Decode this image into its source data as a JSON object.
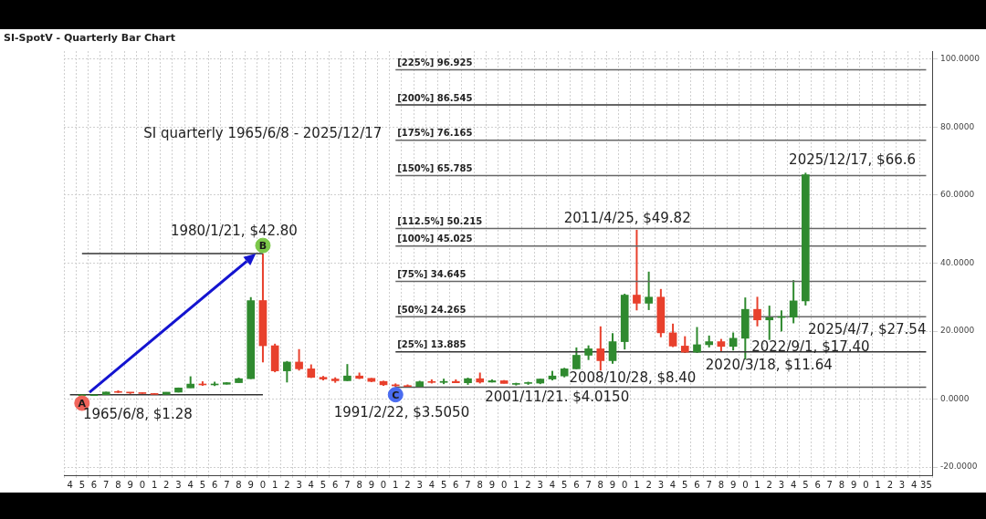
{
  "chart_data": {
    "type": "candlestick",
    "title": "SI-SpotV - Quarterly Bar Chart",
    "subtitle": "SI quarterly 1965/6/8 - 2025/12/17",
    "categories": [
      "4",
      "5",
      "6",
      "7",
      "8",
      "9",
      "0",
      "1",
      "2",
      "3",
      "4",
      "5",
      "6",
      "7",
      "8",
      "9",
      "0",
      "1",
      "2",
      "3",
      "4",
      "5",
      "6",
      "7",
      "8",
      "9",
      "0",
      "1",
      "2",
      "3",
      "4",
      "5",
      "6",
      "7",
      "8",
      "9",
      "0",
      "1",
      "2",
      "3",
      "4",
      "5",
      "6",
      "7",
      "8",
      "9",
      "0",
      "1",
      "2",
      "3",
      "4",
      "5",
      "6",
      "7",
      "8",
      "9",
      "0",
      "1",
      "2",
      "3",
      "4",
      "5",
      "6",
      "7",
      "8",
      "9",
      "0",
      "1",
      "2",
      "3",
      "4",
      "35"
    ],
    "ylim": [
      -22.4,
      102.4
    ],
    "yticks": [
      {
        "value": -20,
        "label": "-20.0000"
      },
      {
        "value": 0,
        "label": "0.0000"
      },
      {
        "value": 20,
        "label": "20.0000"
      },
      {
        "value": 40,
        "label": "40.0000"
      },
      {
        "value": 60,
        "label": "60.0000"
      },
      {
        "value": 80,
        "label": "80.0000"
      },
      {
        "value": 100,
        "label": "100.0000"
      }
    ],
    "grid": true,
    "series": [
      {
        "ohlc": [
          null,
          [
            1.29,
            1.29,
            1.28,
            1.29
          ],
          [
            1.29,
            1.29,
            1.29,
            1.29
          ],
          [
            1.29,
            2.17,
            1.29,
            2.08
          ],
          [
            2.08,
            2.56,
            1.81,
            1.97
          ],
          [
            1.97,
            2.02,
            1.54,
            1.8
          ],
          [
            1.8,
            1.94,
            1.57,
            1.64
          ],
          [
            1.64,
            1.75,
            1.31,
            1.37
          ],
          [
            1.37,
            2.05,
            1.36,
            2.04
          ],
          [
            2.04,
            3.4,
            1.96,
            3.28
          ],
          [
            3.28,
            6.7,
            3.27,
            4.42
          ],
          [
            4.42,
            5.23,
            3.91,
            4.18
          ],
          [
            4.18,
            5.11,
            3.84,
            4.37
          ],
          [
            4.37,
            4.97,
            4.3,
            4.83
          ],
          [
            4.83,
            6.3,
            4.8,
            6.0
          ],
          [
            6.0,
            30,
            5.9,
            29
          ],
          [
            29,
            42.8,
            10.8,
            15.7
          ],
          [
            15.7,
            16.3,
            7.9,
            8.3
          ],
          [
            8.3,
            11.2,
            4.9,
            10.9
          ],
          [
            10.9,
            14.7,
            8.4,
            8.9
          ],
          [
            8.9,
            10.2,
            6.2,
            6.4
          ],
          [
            6.4,
            6.8,
            5.5,
            5.9
          ],
          [
            5.9,
            6.4,
            4.8,
            5.4
          ],
          [
            5.4,
            10.3,
            5.3,
            6.8
          ],
          [
            6.8,
            7.8,
            5.9,
            6.1
          ],
          [
            6.1,
            6.2,
            5.0,
            5.2
          ],
          [
            5.2,
            5.4,
            3.9,
            4.2
          ],
          [
            4.2,
            4.6,
            3.505,
            3.9
          ],
          [
            3.9,
            4.3,
            3.6,
            3.7
          ],
          [
            3.7,
            5.4,
            3.5,
            5.1
          ],
          [
            5.1,
            5.8,
            4.6,
            4.9
          ],
          [
            4.9,
            6.0,
            4.4,
            5.2
          ],
          [
            5.2,
            5.8,
            4.7,
            4.8
          ],
          [
            4.8,
            6.3,
            4.2,
            6.0
          ],
          [
            6.0,
            7.8,
            4.6,
            5.0
          ],
          [
            5.0,
            5.8,
            4.9,
            5.4
          ],
          [
            5.4,
            5.6,
            4.6,
            4.6
          ],
          [
            4.6,
            4.8,
            4.015,
            4.6
          ],
          [
            4.6,
            5.1,
            4.2,
            4.7
          ],
          [
            4.7,
            6.0,
            4.4,
            5.9
          ],
          [
            5.9,
            8.3,
            5.5,
            6.8
          ],
          [
            6.8,
            9.2,
            6.4,
            8.9
          ],
          [
            8.9,
            15.2,
            8.8,
            12.9
          ],
          [
            12.9,
            15.8,
            11.5,
            14.8
          ],
          [
            14.8,
            21.4,
            8.4,
            11.3
          ],
          [
            11.3,
            19.4,
            10.4,
            16.9
          ],
          [
            16.9,
            31.0,
            14.6,
            30.6
          ],
          [
            30.6,
            49.82,
            26.1,
            28.2
          ],
          [
            28.2,
            37.5,
            26.2,
            30.0
          ],
          [
            30.0,
            32.4,
            18.2,
            19.5
          ],
          [
            19.5,
            22.2,
            15.3,
            15.6
          ],
          [
            15.6,
            18.5,
            13.6,
            13.8
          ],
          [
            13.8,
            21.2,
            13.6,
            16.0
          ],
          [
            16.0,
            18.7,
            15.2,
            16.9
          ],
          [
            16.9,
            17.7,
            13.9,
            15.5
          ],
          [
            15.5,
            19.6,
            14.3,
            17.9
          ],
          [
            17.9,
            29.9,
            11.64,
            26.4
          ],
          [
            26.4,
            30.1,
            21.4,
            23.3
          ],
          [
            23.3,
            27.5,
            17.4,
            24.0
          ],
          [
            24.0,
            26.1,
            19.9,
            24.1
          ],
          [
            24.1,
            35.0,
            22.3,
            28.9
          ],
          [
            28.9,
            66.6,
            27.54,
            66.0
          ],
          null,
          null,
          null,
          null,
          null,
          null,
          null,
          null,
          null,
          null
        ],
        "colors": [
          null,
          "#2f8a2f",
          "#2f8a2f",
          "#2f8a2f",
          "#e8402c",
          "#e8402c",
          "#e8402c",
          "#e8402c",
          "#2f8a2f",
          "#2f8a2f",
          "#2f8a2f",
          "#e8402c",
          "#2f8a2f",
          "#2f8a2f",
          "#2f8a2f",
          "#2f8a2f",
          "#e8402c",
          "#e8402c",
          "#2f8a2f",
          "#e8402c",
          "#e8402c",
          "#e8402c",
          "#e8402c",
          "#2f8a2f",
          "#e8402c",
          "#e8402c",
          "#e8402c",
          "#e8402c",
          "#e8402c",
          "#2f8a2f",
          "#e8402c",
          "#2f8a2f",
          "#e8402c",
          "#2f8a2f",
          "#e8402c",
          "#2f8a2f",
          "#e8402c",
          "#2f8a2f",
          "#2f8a2f",
          "#2f8a2f",
          "#2f8a2f",
          "#2f8a2f",
          "#2f8a2f",
          "#2f8a2f",
          "#e8402c",
          "#2f8a2f",
          "#2f8a2f",
          "#e8402c",
          "#2f8a2f",
          "#e8402c",
          "#e8402c",
          "#e8402c",
          "#2f8a2f",
          "#2f8a2f",
          "#e8402c",
          "#2f8a2f",
          "#2f8a2f",
          "#e8402c",
          "#2f8a2f",
          "#2f8a2f",
          "#2f8a2f",
          "#2f8a2f",
          null,
          null,
          null,
          null,
          null,
          null,
          null,
          null,
          null,
          null
        ]
      },
      {
        "type": "line",
        "color": "#333333",
        "values": [
          1.28,
          null,
          null,
          null,
          null,
          null,
          null,
          null,
          null,
          null,
          null,
          null,
          null,
          null,
          null,
          null,
          1.28,
          null,
          null,
          null,
          null,
          null,
          null,
          null,
          null,
          null,
          null,
          null,
          null,
          null,
          null,
          null,
          null,
          null,
          null,
          null,
          null,
          null,
          null,
          null,
          null,
          null,
          null,
          null,
          null,
          null,
          null,
          null,
          null,
          null,
          null,
          null,
          null,
          null,
          null,
          null,
          null,
          null,
          null,
          null,
          null,
          null,
          null,
          null,
          null,
          null,
          null,
          null,
          null,
          null,
          null,
          null
        ]
      },
      {
        "type": "line",
        "color": "#333333",
        "values": [
          null,
          42.8,
          null,
          null,
          null,
          null,
          null,
          null,
          null,
          null,
          null,
          null,
          null,
          null,
          null,
          null,
          42.8,
          null,
          null,
          null,
          null,
          null,
          null,
          null,
          null,
          null,
          null,
          null,
          null,
          null,
          null,
          null,
          null,
          null,
          null,
          null,
          null,
          null,
          null,
          null,
          null,
          null,
          null,
          null,
          null,
          null,
          null,
          null,
          null,
          null,
          null,
          null,
          null,
          null,
          null,
          null,
          null,
          null,
          null,
          null,
          null,
          null,
          null,
          null,
          null,
          null,
          null,
          null,
          null,
          null,
          null,
          null
        ]
      },
      {
        "type": "line",
        "color": "#555555",
        "values": [
          null,
          null,
          null,
          null,
          null,
          null,
          null,
          null,
          null,
          null,
          null,
          null,
          null,
          null,
          null,
          null,
          null,
          null,
          null,
          null,
          null,
          null,
          null,
          null,
          null,
          null,
          null,
          3.505,
          null,
          null,
          null,
          null,
          null,
          null,
          null,
          null,
          null,
          null,
          null,
          null,
          null,
          null,
          null,
          null,
          null,
          null,
          null,
          null,
          null,
          null,
          null,
          null,
          null,
          null,
          null,
          null,
          null,
          null,
          null,
          null,
          null,
          null,
          null,
          null,
          null,
          null,
          null,
          null,
          null,
          null,
          null,
          3.505
        ]
      },
      {
        "type": "line",
        "name": "[25%] 13.885",
        "color": "#333333",
        "values": [
          null,
          null,
          null,
          null,
          null,
          null,
          null,
          null,
          null,
          null,
          null,
          null,
          null,
          null,
          null,
          null,
          null,
          null,
          null,
          null,
          null,
          null,
          null,
          null,
          null,
          null,
          null,
          13.885,
          null,
          null,
          null,
          null,
          null,
          null,
          null,
          null,
          null,
          null,
          null,
          null,
          null,
          null,
          null,
          null,
          null,
          null,
          null,
          null,
          null,
          null,
          null,
          null,
          null,
          null,
          null,
          null,
          null,
          null,
          null,
          null,
          null,
          null,
          null,
          null,
          null,
          null,
          null,
          null,
          null,
          null,
          null,
          13.885
        ]
      },
      {
        "type": "line",
        "name": "[50%] 24.265",
        "color": "#666666",
        "values": [
          null,
          null,
          null,
          null,
          null,
          null,
          null,
          null,
          null,
          null,
          null,
          null,
          null,
          null,
          null,
          null,
          null,
          null,
          null,
          null,
          null,
          null,
          null,
          null,
          null,
          null,
          null,
          24.265,
          null,
          null,
          null,
          null,
          null,
          null,
          null,
          null,
          null,
          null,
          null,
          null,
          null,
          null,
          null,
          null,
          null,
          null,
          null,
          null,
          null,
          null,
          null,
          null,
          null,
          null,
          null,
          null,
          null,
          null,
          null,
          null,
          null,
          null,
          null,
          null,
          null,
          null,
          null,
          null,
          null,
          null,
          null,
          24.265
        ]
      },
      {
        "type": "line",
        "name": "[75%] 34.645",
        "color": "#666666",
        "values": [
          null,
          null,
          null,
          null,
          null,
          null,
          null,
          null,
          null,
          null,
          null,
          null,
          null,
          null,
          null,
          null,
          null,
          null,
          null,
          null,
          null,
          null,
          null,
          null,
          null,
          null,
          null,
          34.645,
          null,
          null,
          null,
          null,
          null,
          null,
          null,
          null,
          null,
          null,
          null,
          null,
          null,
          null,
          null,
          null,
          null,
          null,
          null,
          null,
          null,
          null,
          null,
          null,
          null,
          null,
          null,
          null,
          null,
          null,
          null,
          null,
          null,
          null,
          null,
          null,
          null,
          null,
          null,
          null,
          null,
          null,
          null,
          34.645
        ]
      },
      {
        "type": "line",
        "name": "[100%] 45.025",
        "color": "#666666",
        "values": [
          null,
          null,
          null,
          null,
          null,
          null,
          null,
          null,
          null,
          null,
          null,
          null,
          null,
          null,
          null,
          null,
          null,
          null,
          null,
          null,
          null,
          null,
          null,
          null,
          null,
          null,
          null,
          45.025,
          null,
          null,
          null,
          null,
          null,
          null,
          null,
          null,
          null,
          null,
          null,
          null,
          null,
          null,
          null,
          null,
          null,
          null,
          null,
          null,
          null,
          null,
          null,
          null,
          null,
          null,
          null,
          null,
          null,
          null,
          null,
          null,
          null,
          null,
          null,
          null,
          null,
          null,
          null,
          null,
          null,
          null,
          null,
          45.025
        ]
      },
      {
        "type": "line",
        "name": "[112.5%] 50.215",
        "color": "#666666",
        "values": [
          null,
          null,
          null,
          null,
          null,
          null,
          null,
          null,
          null,
          null,
          null,
          null,
          null,
          null,
          null,
          null,
          null,
          null,
          null,
          null,
          null,
          null,
          null,
          null,
          null,
          null,
          null,
          50.215,
          null,
          null,
          null,
          null,
          null,
          null,
          null,
          null,
          null,
          null,
          null,
          null,
          null,
          null,
          null,
          null,
          null,
          null,
          null,
          null,
          null,
          null,
          null,
          null,
          null,
          null,
          null,
          null,
          null,
          null,
          null,
          null,
          null,
          null,
          null,
          null,
          null,
          null,
          null,
          null,
          null,
          null,
          null,
          50.215
        ]
      },
      {
        "type": "line",
        "name": "[150%] 65.785",
        "color": "#666666",
        "values": [
          null,
          null,
          null,
          null,
          null,
          null,
          null,
          null,
          null,
          null,
          null,
          null,
          null,
          null,
          null,
          null,
          null,
          null,
          null,
          null,
          null,
          null,
          null,
          null,
          null,
          null,
          null,
          65.785,
          null,
          null,
          null,
          null,
          null,
          null,
          null,
          null,
          null,
          null,
          null,
          null,
          null,
          null,
          null,
          null,
          null,
          null,
          null,
          null,
          null,
          null,
          null,
          null,
          null,
          null,
          null,
          null,
          null,
          null,
          null,
          null,
          null,
          null,
          null,
          null,
          null,
          null,
          null,
          null,
          null,
          null,
          null,
          65.785
        ]
      },
      {
        "type": "line",
        "name": "[175%] 76.165",
        "color": "#666666",
        "values": [
          null,
          null,
          null,
          null,
          null,
          null,
          null,
          null,
          null,
          null,
          null,
          null,
          null,
          null,
          null,
          null,
          null,
          null,
          null,
          null,
          null,
          null,
          null,
          null,
          null,
          null,
          null,
          76.165,
          null,
          null,
          null,
          null,
          null,
          null,
          null,
          null,
          null,
          null,
          null,
          null,
          null,
          null,
          null,
          null,
          null,
          null,
          null,
          null,
          null,
          null,
          null,
          null,
          null,
          null,
          null,
          null,
          null,
          null,
          null,
          null,
          null,
          null,
          null,
          null,
          null,
          null,
          null,
          null,
          null,
          null,
          null,
          76.165
        ]
      },
      {
        "type": "line",
        "name": "[200%] 86.545",
        "color": "#333333",
        "values": [
          null,
          null,
          null,
          null,
          null,
          null,
          null,
          null,
          null,
          null,
          null,
          null,
          null,
          null,
          null,
          null,
          null,
          null,
          null,
          null,
          null,
          null,
          null,
          null,
          null,
          null,
          null,
          86.545,
          null,
          null,
          null,
          null,
          null,
          null,
          null,
          null,
          null,
          null,
          null,
          null,
          null,
          null,
          null,
          null,
          null,
          null,
          null,
          null,
          null,
          null,
          null,
          null,
          null,
          null,
          null,
          null,
          null,
          null,
          null,
          null,
          null,
          null,
          null,
          null,
          null,
          null,
          null,
          null,
          null,
          null,
          null,
          86.545
        ]
      },
      {
        "type": "line",
        "name": "[225%] 96.925",
        "color": "#666666",
        "values": [
          null,
          null,
          null,
          null,
          null,
          null,
          null,
          null,
          null,
          null,
          null,
          null,
          null,
          null,
          null,
          null,
          null,
          null,
          null,
          null,
          null,
          null,
          null,
          null,
          null,
          null,
          null,
          96.925,
          null,
          null,
          null,
          null,
          null,
          null,
          null,
          null,
          null,
          null,
          null,
          null,
          null,
          null,
          null,
          null,
          null,
          null,
          null,
          null,
          null,
          null,
          null,
          null,
          null,
          null,
          null,
          null,
          null,
          null,
          null,
          null,
          null,
          null,
          null,
          null,
          null,
          null,
          null,
          null,
          null,
          null,
          null,
          96.925
        ]
      },
      {
        "type": "scatter",
        "marker": "circle",
        "values": [
          null,
          -1.2,
          null,
          null,
          null,
          null,
          null,
          null,
          null,
          null,
          null,
          null,
          null,
          null,
          null,
          null,
          45.2,
          null,
          null,
          null,
          null,
          null,
          null,
          null,
          null,
          null,
          null,
          1.3,
          null,
          null,
          null,
          null,
          null,
          null,
          null,
          null,
          null,
          null,
          null,
          null,
          null,
          null,
          null,
          null,
          null,
          null,
          null,
          null,
          null,
          null,
          null,
          null,
          null,
          null,
          null,
          null,
          null,
          null,
          null,
          null,
          null,
          null,
          null,
          null,
          null,
          null,
          null,
          null,
          null,
          null,
          null,
          null
        ],
        "colors": [
          null,
          "#f0645a",
          null,
          null,
          null,
          null,
          null,
          null,
          null,
          null,
          null,
          null,
          null,
          null,
          null,
          null,
          "#7cc84a",
          null,
          null,
          null,
          null,
          null,
          null,
          null,
          null,
          null,
          null,
          "#4a6cf0",
          null,
          null,
          null,
          null,
          null,
          null,
          null,
          null,
          null,
          null,
          null,
          null,
          null,
          null,
          null,
          null,
          null,
          null,
          null,
          null,
          null,
          null,
          null,
          null,
          null,
          null,
          null,
          null,
          null,
          null,
          null,
          null,
          null,
          null,
          null,
          null,
          null,
          null,
          null,
          null,
          null,
          null,
          null,
          null
        ],
        "value_labels": [
          null,
          "A",
          null,
          null,
          null,
          null,
          null,
          null,
          null,
          null,
          null,
          null,
          null,
          null,
          null,
          null,
          "B",
          null,
          null,
          null,
          null,
          null,
          null,
          null,
          null,
          null,
          null,
          "C",
          null,
          null,
          null,
          null,
          null,
          null,
          null,
          null,
          null,
          null,
          null,
          null,
          null,
          null,
          null,
          null,
          null,
          null,
          null,
          null,
          null,
          null,
          null,
          null,
          null,
          null,
          null,
          null,
          null,
          null,
          null,
          null,
          null,
          null,
          null,
          null,
          null,
          null,
          null,
          null,
          null,
          null,
          null,
          null
        ]
      }
    ],
    "annotations": [
      "1965/6/8, $1.28",
      "1980/1/21, $42.80",
      "1991/2/22, $3.5050",
      "2001/11/21. $4.0150",
      "2008/10/28, $8.40",
      "2011/4/25, $49.82",
      "2020/3/18, $11.64",
      "2022/9/1, $17.40",
      "2025/4/7, $27.54",
      "2025/12/17, $66.6"
    ]
  }
}
